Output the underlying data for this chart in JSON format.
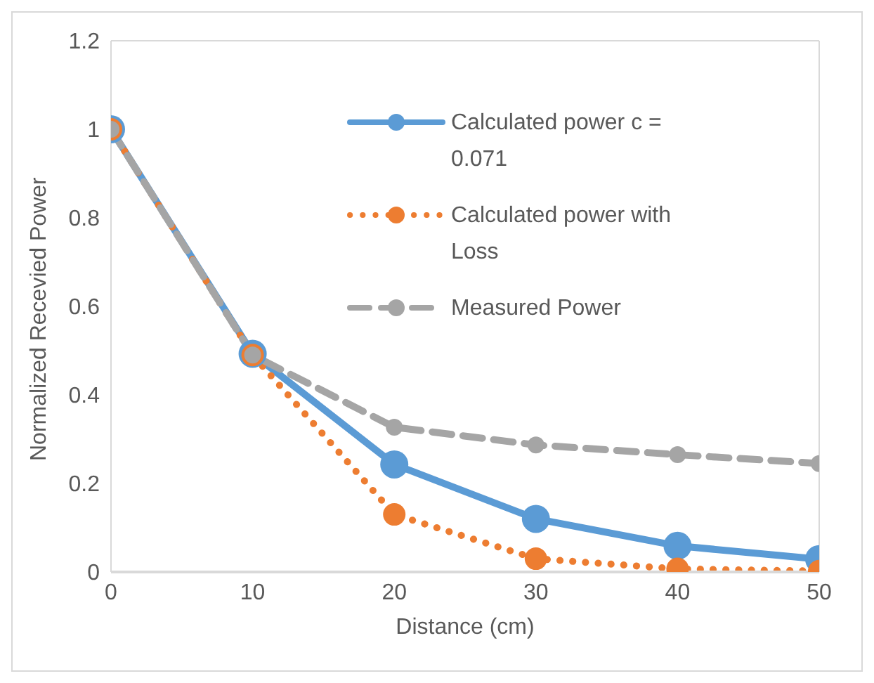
{
  "chart_data": {
    "type": "line",
    "xlabel": "Distance (cm)",
    "ylabel": "Normalized Recevied Power",
    "x": [
      0,
      10,
      20,
      30,
      40,
      50
    ],
    "series": [
      {
        "name": "Calculated power c = 0.071",
        "color": "#5b9bd5",
        "line_style": "solid",
        "values": [
          1,
          0.493,
          0.243,
          0.12,
          0.059,
          0.029
        ]
      },
      {
        "name": "Calculated power with Loss",
        "color": "#ed7d31",
        "line_style": "dotted",
        "values": [
          1,
          0.49,
          0.13,
          0.03,
          0.007,
          0.002
        ]
      },
      {
        "name": "Measured Power",
        "color": "#a5a5a5",
        "line_style": "dashed",
        "values": [
          1,
          0.49,
          0.327,
          0.287,
          0.265,
          0.245
        ]
      }
    ],
    "xlim": [
      0,
      50
    ],
    "xticks": [
      0,
      10,
      20,
      30,
      40,
      50
    ],
    "ylim": [
      0,
      1.2
    ],
    "yticks": [
      0,
      0.2,
      0.4,
      0.6,
      0.8,
      1,
      1.2
    ],
    "grid": false,
    "legend": "top right",
    "marker": "circle"
  }
}
